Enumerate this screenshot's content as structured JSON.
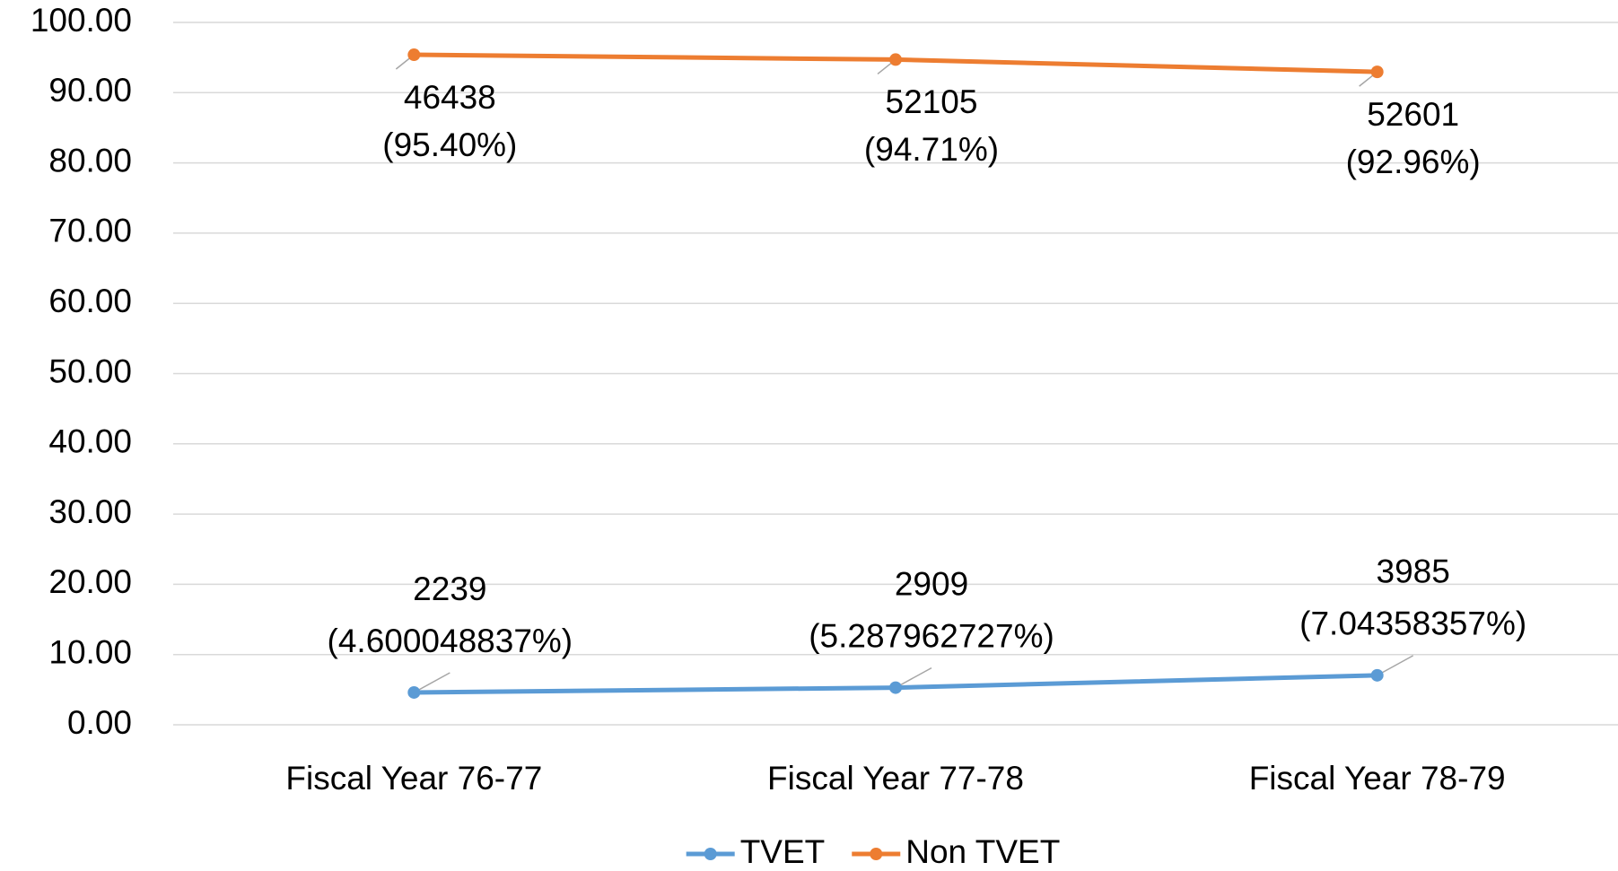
{
  "chart_data": {
    "type": "line",
    "categories": [
      "Fiscal Year 76-77",
      "Fiscal Year 77-78",
      "Fiscal Year 78-79"
    ],
    "series": [
      {
        "name": "TVET",
        "color": "#5b9bd5",
        "values": [
          4.600048837,
          5.287962727,
          7.04358357
        ],
        "counts": [
          2239,
          2909,
          3985
        ],
        "value_labels": [
          "(4.600048837%)",
          "(5.287962727%)",
          "(7.04358357%)"
        ]
      },
      {
        "name": "Non TVET",
        "color": "#ed7d31",
        "values": [
          95.4,
          94.71,
          92.96
        ],
        "counts": [
          46438,
          52105,
          52601
        ],
        "value_labels": [
          "(95.40%)",
          "(94.71%)",
          "(92.96%)"
        ]
      }
    ],
    "ylim": [
      0,
      100
    ],
    "yticks": [
      {
        "value": 0,
        "label": "0.00"
      },
      {
        "value": 10,
        "label": "10.00"
      },
      {
        "value": 20,
        "label": "20.00"
      },
      {
        "value": 30,
        "label": "30.00"
      },
      {
        "value": 40,
        "label": "40.00"
      },
      {
        "value": 50,
        "label": "50.00"
      },
      {
        "value": 60,
        "label": "60.00"
      },
      {
        "value": 70,
        "label": "70.00"
      },
      {
        "value": 80,
        "label": "80.00"
      },
      {
        "value": 90,
        "label": "90.00"
      },
      {
        "value": 100,
        "label": "100.00"
      }
    ],
    "grid": true,
    "legend": "bottom"
  }
}
